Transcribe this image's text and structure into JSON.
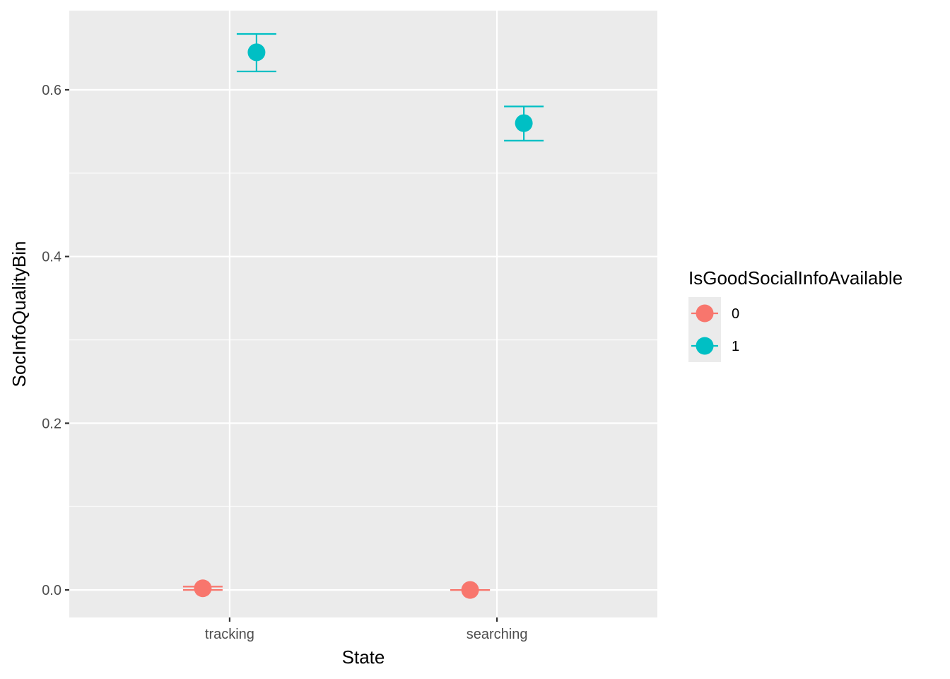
{
  "chart_data": {
    "type": "scatter",
    "subtype": "point-with-errorbars",
    "xlabel": "State",
    "ylabel": "SocInfoQualityBin",
    "categories": [
      "tracking",
      "searching"
    ],
    "ylim": [
      -0.033,
      0.695
    ],
    "y_ticks": [
      0.0,
      0.2,
      0.4,
      0.6
    ],
    "y_tick_labels": [
      "0.0",
      "0.2",
      "0.4",
      "0.6"
    ],
    "grid": true,
    "legend": {
      "title": "IsGoodSocialInfoAvailable",
      "position": "right",
      "entries": [
        "0",
        "1"
      ]
    },
    "series": [
      {
        "name": "0",
        "color": "#F8766D",
        "points": [
          {
            "x": "tracking",
            "y": 0.002,
            "ymin": 0.0,
            "ymax": 0.004
          },
          {
            "x": "searching",
            "y": 0.0,
            "ymin": 0.0,
            "ymax": 0.0
          }
        ]
      },
      {
        "name": "1",
        "color": "#00BFC4",
        "points": [
          {
            "x": "tracking",
            "y": 0.645,
            "ymin": 0.622,
            "ymax": 0.667
          },
          {
            "x": "searching",
            "y": 0.56,
            "ymin": 0.539,
            "ymax": 0.58
          }
        ]
      }
    ]
  }
}
